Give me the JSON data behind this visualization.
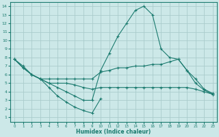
{
  "xlabel": "Humidex (Indice chaleur)",
  "bg_color": "#cce8e8",
  "grid_color": "#aacccc",
  "line_color": "#1a7a6e",
  "xlim": [
    -0.5,
    23.5
  ],
  "ylim": [
    0.5,
    14.5
  ],
  "xticks": [
    0,
    1,
    2,
    3,
    4,
    5,
    6,
    7,
    8,
    9,
    10,
    11,
    12,
    13,
    14,
    15,
    16,
    17,
    18,
    19,
    20,
    21,
    22,
    23
  ],
  "yticks": [
    1,
    2,
    3,
    4,
    5,
    6,
    7,
    8,
    9,
    10,
    11,
    12,
    13,
    14
  ],
  "line1_x": [
    0,
    1,
    2,
    3,
    4,
    5,
    6,
    7,
    8,
    9,
    10,
    11,
    12,
    13,
    14,
    15,
    16,
    17,
    18,
    19,
    20,
    21,
    22,
    23
  ],
  "line1_y": [
    7.8,
    7.0,
    6.0,
    5.5,
    5.0,
    4.5,
    4.0,
    3.5,
    3.0,
    3.0,
    6.5,
    8.5,
    10.5,
    12.0,
    13.5,
    14.0,
    13.0,
    9.0,
    8.0,
    7.8,
    6.5,
    5.0,
    4.2,
    3.7
  ],
  "line2_x": [
    0,
    1,
    2,
    3,
    4,
    5,
    6,
    7,
    8,
    9,
    10,
    11,
    12,
    13,
    14,
    15,
    16,
    17,
    18,
    19,
    20,
    21,
    22,
    23
  ],
  "line2_y": [
    7.8,
    6.8,
    6.0,
    5.5,
    5.5,
    5.5,
    5.5,
    5.5,
    5.5,
    5.5,
    6.3,
    6.5,
    6.8,
    6.8,
    7.0,
    7.0,
    7.2,
    7.2,
    7.5,
    7.8,
    6.5,
    5.5,
    4.3,
    3.8
  ],
  "line3_x": [
    0,
    1,
    2,
    3,
    4,
    5,
    6,
    7,
    8,
    9,
    10,
    11,
    12,
    13,
    14,
    15,
    16,
    17,
    18,
    19,
    20,
    21,
    22,
    23
  ],
  "line3_y": [
    7.8,
    6.8,
    6.0,
    5.5,
    5.0,
    5.0,
    5.0,
    4.8,
    4.5,
    4.3,
    4.5,
    4.5,
    4.5,
    4.5,
    4.5,
    4.5,
    4.5,
    4.5,
    4.5,
    4.5,
    4.5,
    4.3,
    4.0,
    3.7
  ],
  "line4_x": [
    2,
    3,
    4,
    5,
    6,
    7,
    8,
    9,
    10
  ],
  "line4_y": [
    6.0,
    5.5,
    4.5,
    3.5,
    2.8,
    2.2,
    1.8,
    1.5,
    3.2
  ]
}
